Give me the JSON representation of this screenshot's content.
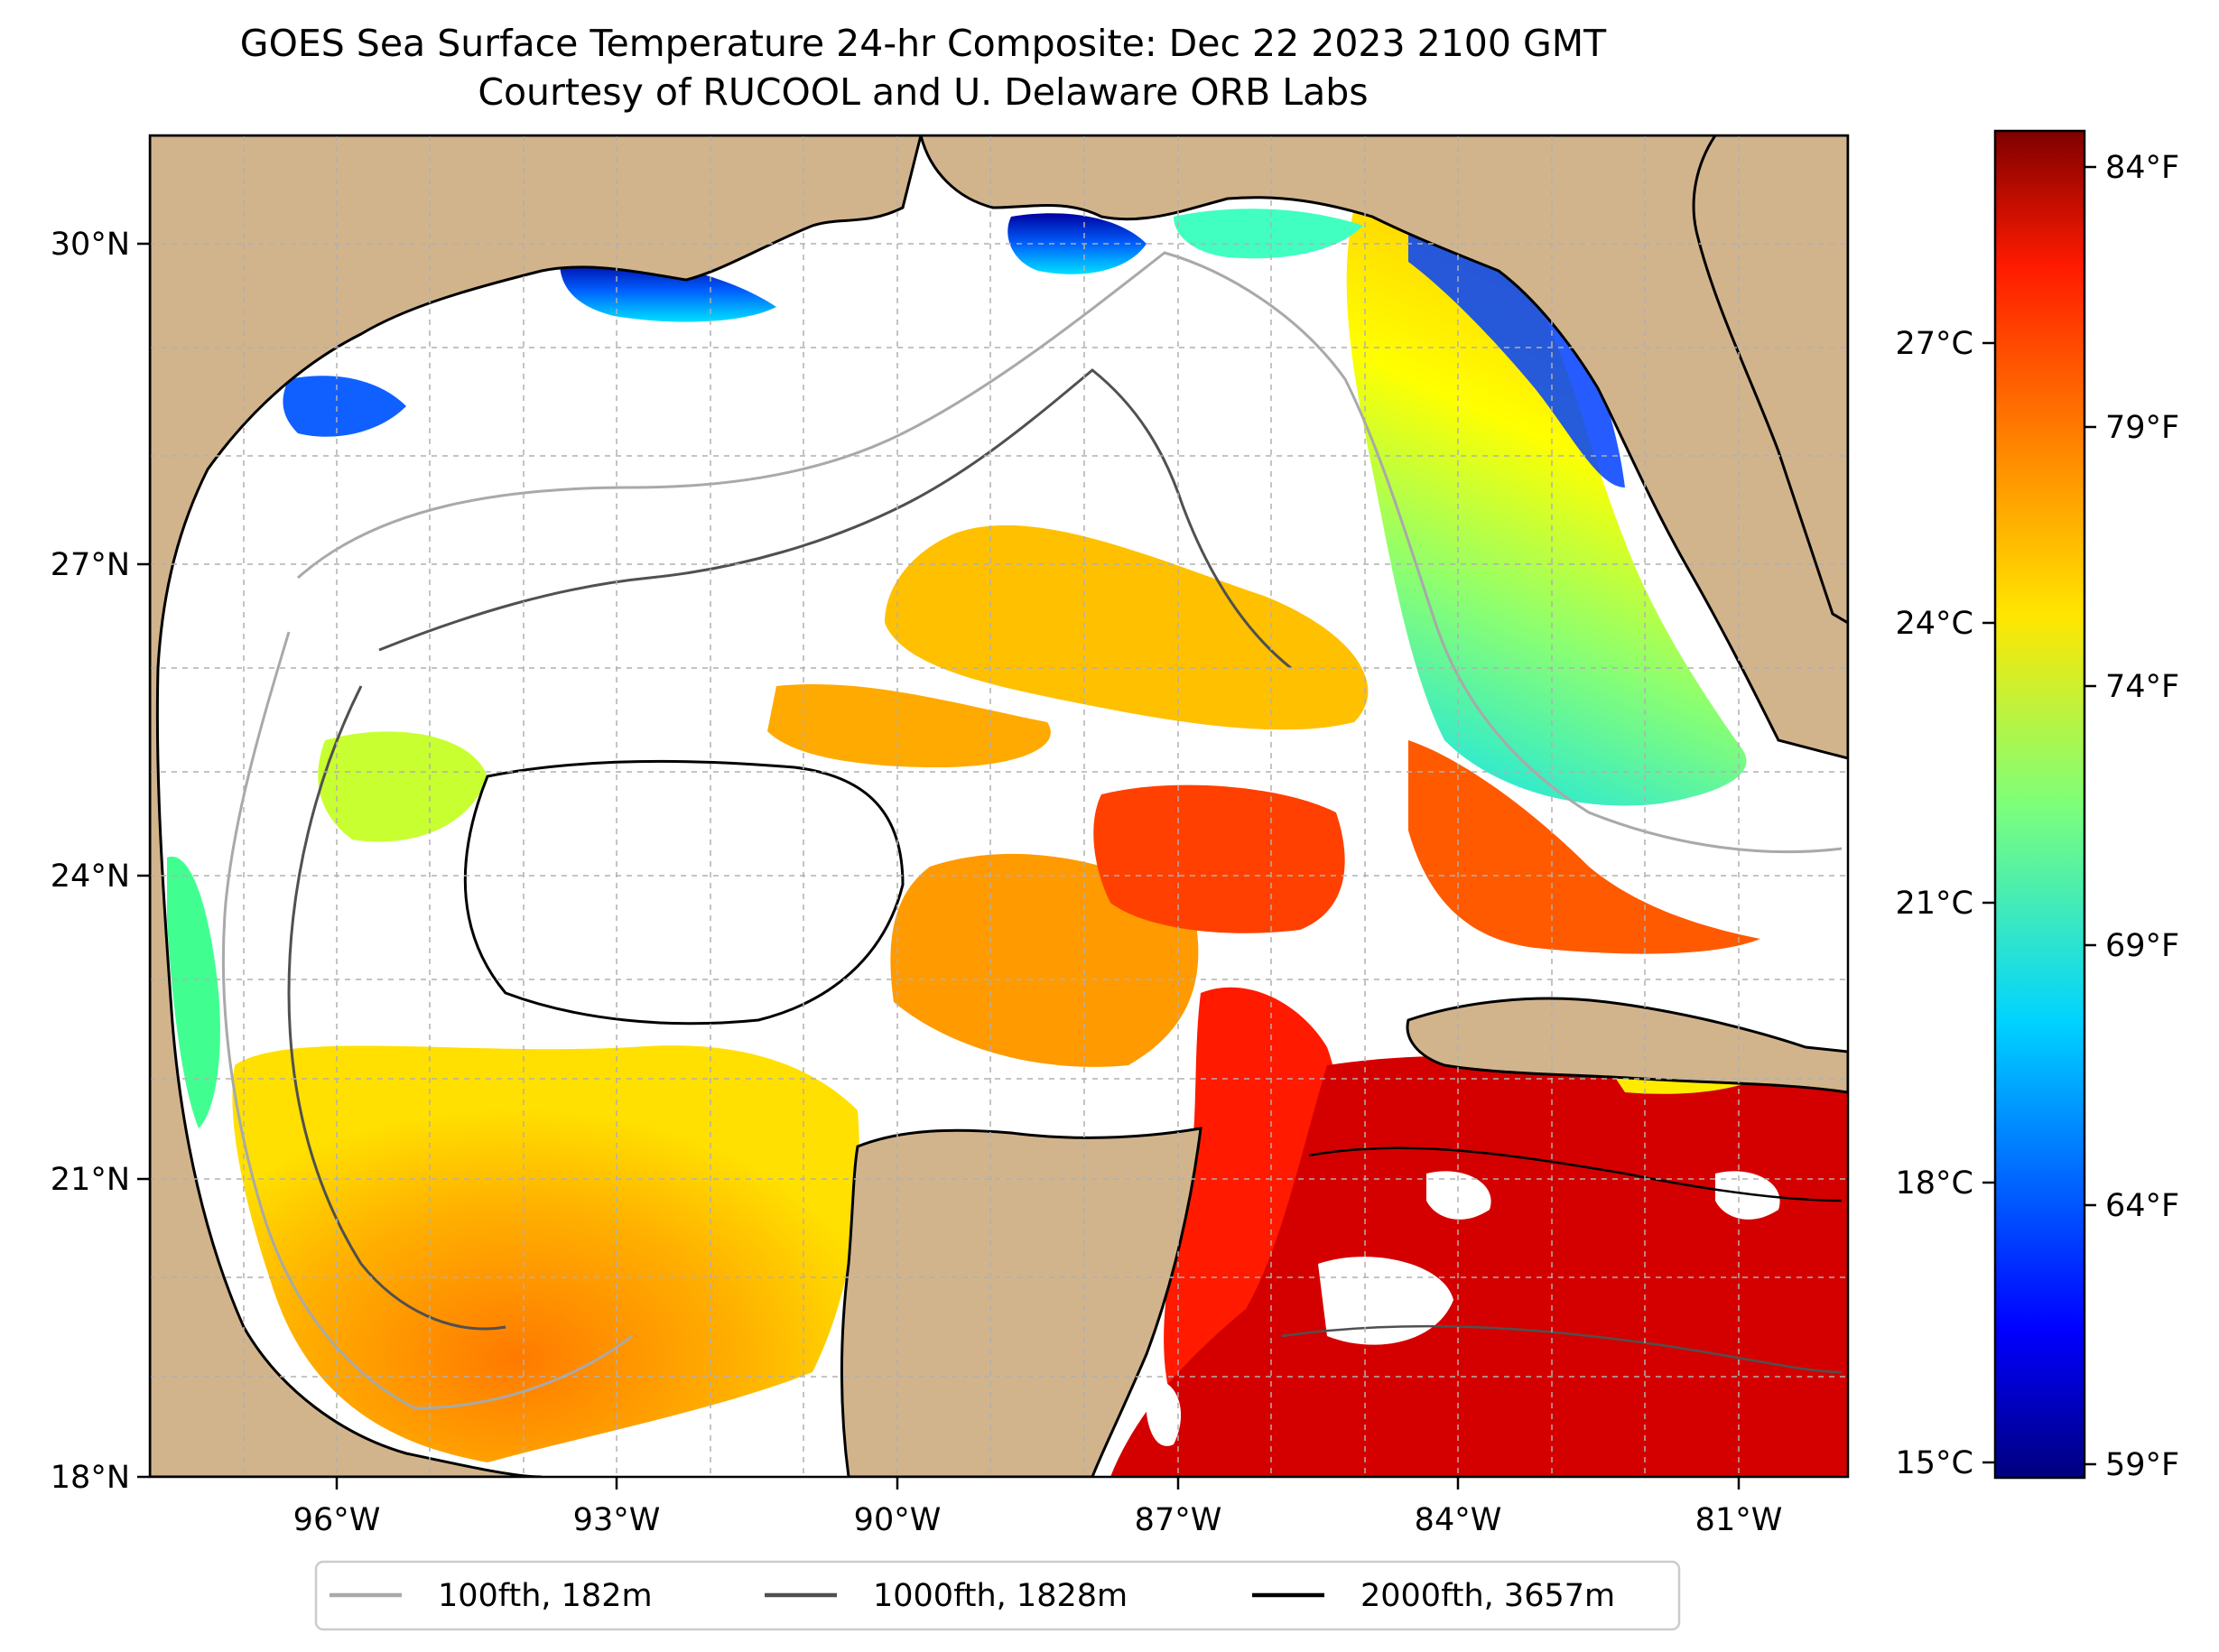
{
  "title": {
    "line1": "GOES Sea Surface Temperature 24-hr Composite: Dec 22 2023 2100 GMT",
    "line2": "Courtesy of RUCOOL and U. Delaware ORB Labs"
  },
  "map": {
    "lat_ticks": [
      "30°N",
      "27°N",
      "24°N",
      "21°N",
      "18°N"
    ],
    "lon_ticks": [
      "96°W",
      "93°W",
      "90°W",
      "87°W",
      "84°W",
      "81°W"
    ],
    "colors": {
      "land": "#d2b48c",
      "cloud_gap": "#ffffff",
      "grid": "#b0b0b0"
    }
  },
  "colorbar": {
    "fahrenheit_ticks": [
      "84°F",
      "79°F",
      "74°F",
      "69°F",
      "64°F",
      "59°F"
    ],
    "celsius_ticks": [
      "27°C",
      "24°C",
      "21°C",
      "18°C",
      "15°C"
    ],
    "colormap": "jet"
  },
  "legend": {
    "items": [
      {
        "label": "100fth, 182m",
        "color": "#a9a9a9"
      },
      {
        "label": "1000fth, 1828m",
        "color": "#505050"
      },
      {
        "label": "2000fth, 3657m",
        "color": "#000000"
      }
    ]
  }
}
